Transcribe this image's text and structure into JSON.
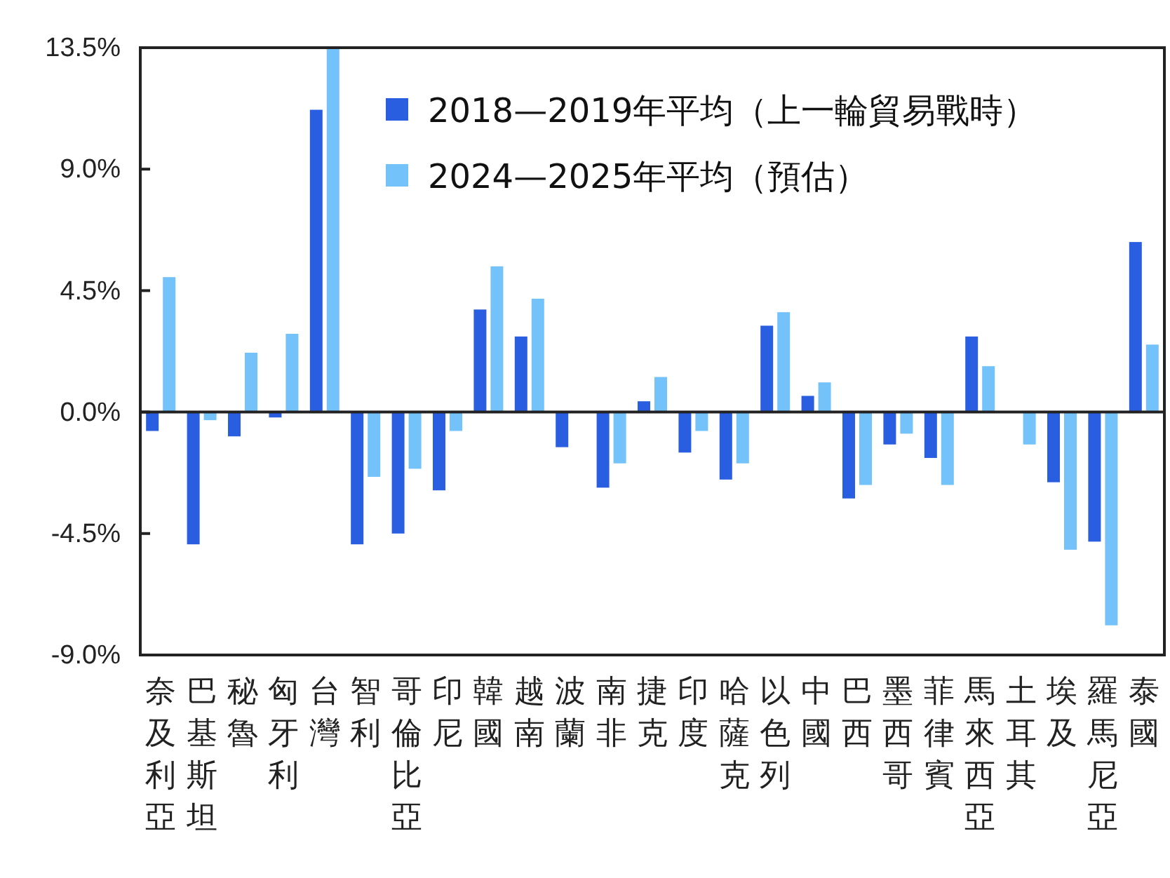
{
  "chart_data": {
    "type": "bar",
    "categories": [
      "奈及利亞",
      "巴基斯坦",
      "秘魯",
      "匈牙利",
      "台灣",
      "智利",
      "哥倫比亞",
      "印尼",
      "韓國",
      "越南",
      "波蘭",
      "南非",
      "捷克",
      "印度",
      "哈薩克",
      "以色列",
      "中國",
      "巴西",
      "墨西哥",
      "菲律賓",
      "馬來西亞",
      "土耳其",
      "埃及",
      "羅馬尼亞",
      "泰國"
    ],
    "series": [
      {
        "name": "2018—2019年平均（上一輪貿易戰時）",
        "color": "#2a5ee0",
        "values": [
          -0.7,
          -4.9,
          -0.9,
          -0.2,
          11.2,
          -4.9,
          -4.5,
          -2.9,
          3.8,
          2.8,
          -1.3,
          -2.8,
          0.4,
          -1.5,
          -2.5,
          3.2,
          0.6,
          -3.2,
          -1.2,
          -1.7,
          2.8,
          0,
          -2.6,
          -4.8,
          6.3
        ]
      },
      {
        "name": "2024—2025年平均（預估）",
        "color": "#74c2fa",
        "values": [
          5.0,
          -0.3,
          2.2,
          2.9,
          13.5,
          -2.4,
          -2.1,
          -0.7,
          5.4,
          4.2,
          0,
          -1.9,
          1.3,
          -0.7,
          -1.9,
          3.7,
          1.1,
          -2.7,
          -0.8,
          -2.7,
          1.7,
          -1.2,
          -5.1,
          -7.9,
          2.5
        ]
      }
    ],
    "ylim": [
      -9,
      13.5
    ],
    "yticks": [
      {
        "value": -9,
        "label": "-9.0%"
      },
      {
        "value": -4.5,
        "label": "-4.5%"
      },
      {
        "value": 0,
        "label": "0.0%"
      },
      {
        "value": 4.5,
        "label": "4.5%"
      },
      {
        "value": 9,
        "label": "9.0%"
      },
      {
        "value": 13.5,
        "label": "13.5%"
      }
    ],
    "legend": "top right"
  }
}
